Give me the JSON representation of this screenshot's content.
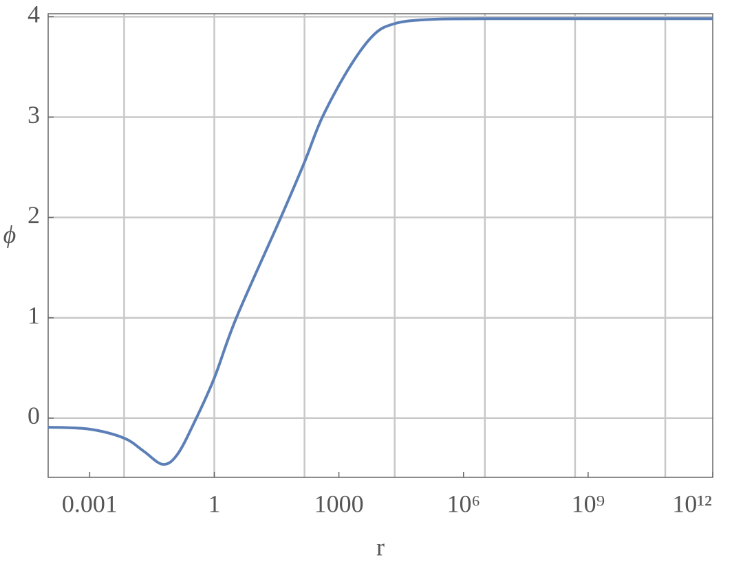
{
  "chart_data": {
    "type": "line",
    "x_label": "r",
    "y_label": "ϕ",
    "x_scale": "log",
    "xlim": [
      0.0001,
      1000000000000
    ],
    "ylim": [
      -0.59,
      4.03
    ],
    "xticks": [
      0.001,
      1,
      1000,
      {
        "value": 1000000,
        "label": "10⁶"
      },
      {
        "value": 1000000000,
        "label": "10⁹"
      },
      {
        "value": 1000000000000,
        "label": "10¹²"
      }
    ],
    "yticks": [
      0,
      1,
      2,
      3,
      4
    ],
    "xgrid": [
      0.006738,
      1,
      148.41,
      22026,
      3269017,
      485165195,
      72004899337
    ],
    "grid": true,
    "x": [
      0.0001,
      0.001,
      0.0068,
      0.02,
      0.0575,
      0.13,
      0.35,
      1,
      3.4,
      40,
      148,
      400,
      1820,
      6900,
      21400,
      117000,
      3200000,
      1000000000000
    ],
    "series": [
      {
        "color": "#5b7fb6",
        "values": [
          -0.09,
          -0.11,
          -0.2,
          -0.33,
          -0.46,
          -0.36,
          -0.02,
          0.4,
          1.0,
          2.0,
          2.55,
          3.0,
          3.5,
          3.82,
          3.93,
          3.97,
          3.98,
          3.98
        ]
      }
    ]
  }
}
